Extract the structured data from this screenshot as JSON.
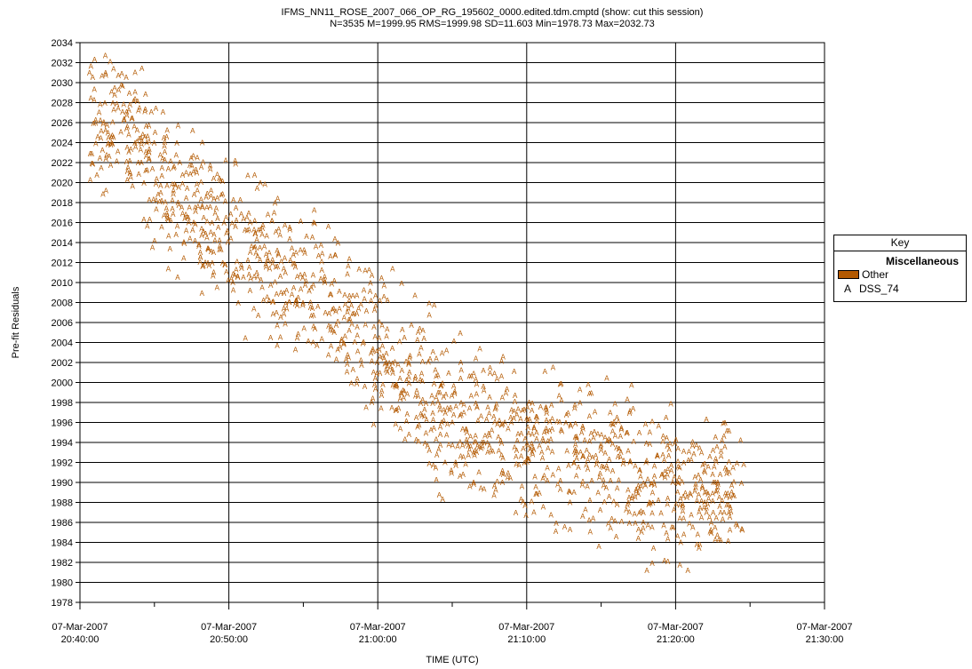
{
  "chart_data": {
    "type": "scatter",
    "title": "IFMS_NN11_ROSE_2007_066_OP_RG_195602_0000.edited.tdm.cmptd (show: cut this session)",
    "subtitle": "N=3535  M=1999.95  RMS=1999.98  SD=11.603  Min=1978.73  Max=2032.73",
    "xlabel": "TIME (UTC)",
    "ylabel": "Pre-fit Residuals",
    "xlim": [
      "2007-03-07T20:40:00",
      "2007-03-07T21:30:00"
    ],
    "ylim": [
      1978,
      2034
    ],
    "y_ticks": [
      1978,
      1980,
      1982,
      1984,
      1986,
      1988,
      1990,
      1992,
      1994,
      1996,
      1998,
      2000,
      2002,
      2004,
      2006,
      2008,
      2010,
      2012,
      2014,
      2016,
      2018,
      2020,
      2022,
      2024,
      2026,
      2028,
      2030,
      2032,
      2034
    ],
    "x_ticks": [
      {
        "date": "07-Mar-2007",
        "time": "20:40:00"
      },
      {
        "date": "07-Mar-2007",
        "time": "20:50:00"
      },
      {
        "date": "07-Mar-2007",
        "time": "21:00:00"
      },
      {
        "date": "07-Mar-2007",
        "time": "21:10:00"
      },
      {
        "date": "07-Mar-2007",
        "time": "21:20:00"
      },
      {
        "date": "07-Mar-2007",
        "time": "21:30:00"
      }
    ],
    "grid": true,
    "marker": "A",
    "color": "#b35900",
    "series": [
      {
        "name": "DSS_74",
        "trend_minutes": [
          0.6,
          3,
          6,
          9,
          12,
          15,
          18,
          21,
          24,
          27,
          30,
          33,
          36,
          39,
          42,
          44.6
        ],
        "trend_values": [
          2026.5,
          2026,
          2019,
          2016,
          2012,
          2010,
          2006,
          2002,
          1998,
          1995,
          1994,
          1993,
          1992,
          1990,
          1989,
          1989
        ],
        "spread": 11.6
      }
    ],
    "legend": {
      "title": "Key",
      "group": "Miscellaneous",
      "items": [
        {
          "label": "Other",
          "kind": "swatch",
          "color": "#b35900"
        },
        {
          "label": "DSS_74",
          "kind": "marker",
          "symbol": "A"
        }
      ],
      "position": "right"
    }
  }
}
